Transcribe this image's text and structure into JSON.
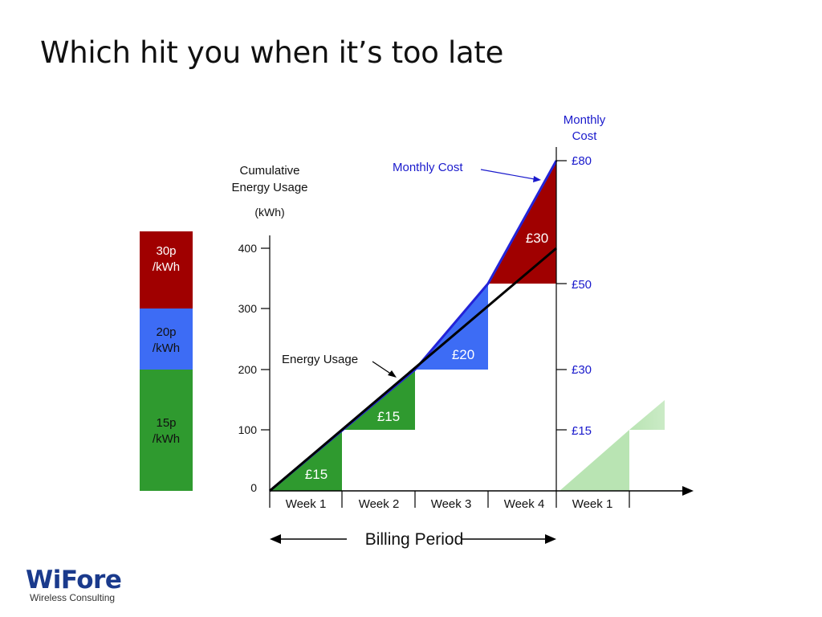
{
  "title": "Which hit you when it’s too late",
  "colors": {
    "tier_30p": "#a00000",
    "tier_20p": "#3d6cf5",
    "tier_15p": "#2f9a2f",
    "next_period_fill": "#b9e4b3",
    "cost_axis_text": "#1a1acc",
    "usage_line": "#000000"
  },
  "tariff_legend": [
    {
      "rate": "30p",
      "unit": "/kWh"
    },
    {
      "rate": "20p",
      "unit": "/kWh"
    },
    {
      "rate": "15p",
      "unit": "/kWh"
    }
  ],
  "left_axis": {
    "label_line1": "Cumulative",
    "label_line2": "Energy Usage",
    "unit": "(kWh)",
    "ticks": [
      "400",
      "300",
      "200",
      "100",
      "0"
    ]
  },
  "right_axis": {
    "label_line1": "Monthly",
    "label_line2": "Cost",
    "ticks": [
      "£80",
      "£50",
      "£30",
      "£15"
    ]
  },
  "weeks": [
    "Week 1",
    "Week 2",
    "Week 3",
    "Week 4",
    "Week 1"
  ],
  "step_labels": [
    "£15",
    "£15",
    "£20",
    "£30"
  ],
  "annotations": {
    "energy_usage": "Energy Usage",
    "monthly_cost": "Monthly Cost"
  },
  "billing_period": "Billing Period",
  "logo": {
    "name": "WiFore",
    "tagline": "Wireless Consulting"
  }
}
